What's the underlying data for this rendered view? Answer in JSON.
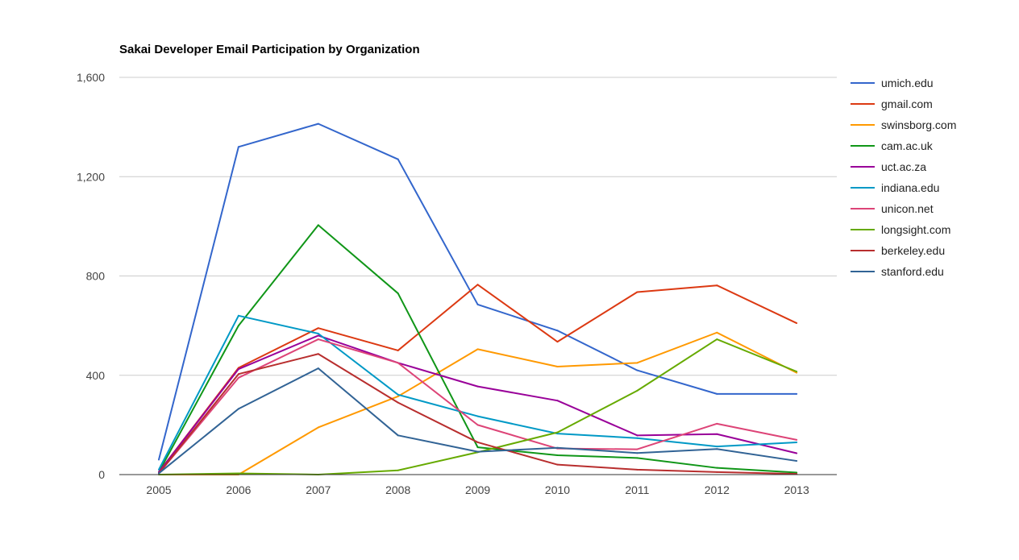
{
  "chart_data": {
    "type": "line",
    "title": "Sakai Developer Email Participation by Organization",
    "xlabel": "",
    "ylabel": "",
    "x": [
      "2005",
      "2006",
      "2007",
      "2008",
      "2009",
      "2010",
      "2011",
      "2012",
      "2013"
    ],
    "ylim": [
      0,
      1600
    ],
    "yticks": [
      0,
      400,
      800,
      1200,
      1600
    ],
    "ytick_labels": [
      "0",
      "400",
      "800",
      "1,200",
      "1,600"
    ],
    "grid": true,
    "legend_position": "right",
    "series": [
      {
        "name": "umich.edu",
        "color": "#3366cc",
        "values": [
          60,
          1320,
          1413,
          1270,
          685,
          580,
          420,
          325,
          325
        ]
      },
      {
        "name": "gmail.com",
        "color": "#dc3912",
        "values": [
          10,
          430,
          590,
          500,
          765,
          535,
          735,
          762,
          610
        ]
      },
      {
        "name": "swinsborg.com",
        "color": "#ff9900",
        "values": [
          0,
          0,
          190,
          315,
          505,
          435,
          450,
          572,
          410
        ]
      },
      {
        "name": "cam.ac.uk",
        "color": "#109618",
        "values": [
          10,
          600,
          1005,
          730,
          110,
          78,
          67,
          27,
          8
        ]
      },
      {
        "name": "uct.ac.za",
        "color": "#990099",
        "values": [
          10,
          425,
          560,
          450,
          355,
          298,
          158,
          163,
          86
        ]
      },
      {
        "name": "indiana.edu",
        "color": "#0099c6",
        "values": [
          20,
          640,
          568,
          322,
          235,
          165,
          147,
          113,
          130
        ]
      },
      {
        "name": "unicon.net",
        "color": "#dd4477",
        "values": [
          5,
          390,
          545,
          450,
          200,
          105,
          102,
          205,
          140
        ]
      },
      {
        "name": "longsight.com",
        "color": "#66aa00",
        "values": [
          0,
          5,
          0,
          17,
          90,
          170,
          338,
          545,
          415
        ]
      },
      {
        "name": "berkeley.edu",
        "color": "#b82e2e",
        "values": [
          5,
          405,
          486,
          290,
          130,
          40,
          20,
          10,
          3
        ]
      },
      {
        "name": "stanford.edu",
        "color": "#316395",
        "values": [
          5,
          265,
          428,
          158,
          92,
          108,
          87,
          103,
          55
        ]
      }
    ]
  }
}
